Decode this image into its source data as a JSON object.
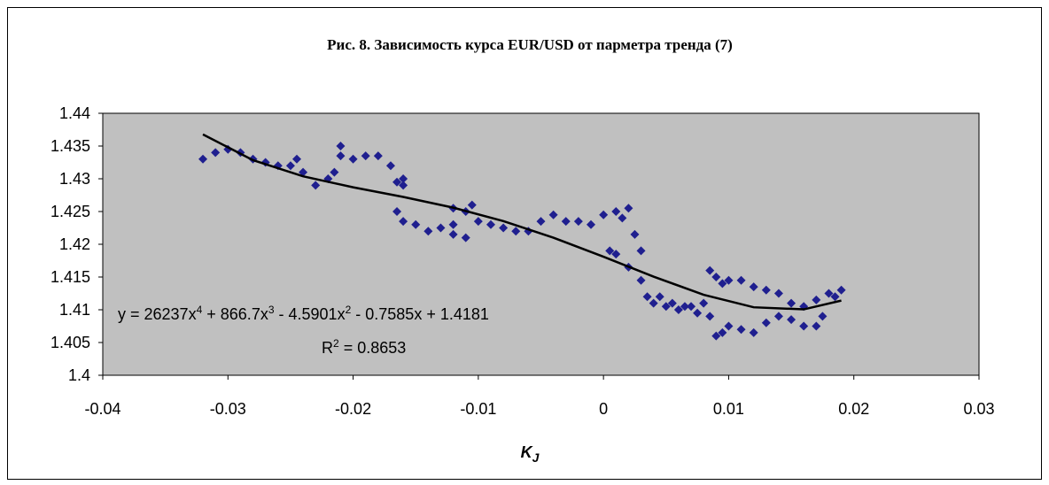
{
  "chart_data": {
    "type": "scatter",
    "title": "Рис. 8. Зависимость курса EUR/USD от парметра тренда (7)",
    "x_label": [
      "K",
      "J"
    ],
    "color": "#1f1f8f",
    "plot_background": "#c0c0c0",
    "xlim": [
      -0.04,
      0.03
    ],
    "xticks": [
      -0.04,
      -0.03,
      -0.02,
      -0.01,
      0,
      0.01,
      0.02,
      0.03
    ],
    "ylim": [
      1.4,
      1.44
    ],
    "yticks": [
      1.4,
      1.405,
      1.41,
      1.415,
      1.42,
      1.425,
      1.43,
      1.435,
      1.44
    ],
    "x": [
      -0.032,
      -0.031,
      -0.03,
      -0.029,
      -0.028,
      -0.027,
      -0.026,
      -0.025,
      -0.0245,
      -0.024,
      -0.023,
      -0.022,
      -0.0215,
      -0.021,
      -0.021,
      -0.02,
      -0.019,
      -0.018,
      -0.017,
      -0.016,
      -0.0165,
      -0.016,
      -0.0165,
      -0.016,
      -0.015,
      -0.014,
      -0.013,
      -0.012,
      -0.012,
      -0.011,
      -0.0105,
      -0.011,
      -0.012,
      -0.01,
      -0.009,
      -0.008,
      -0.007,
      -0.006,
      -0.005,
      -0.004,
      -0.003,
      -0.002,
      -0.001,
      0,
      0.001,
      0.002,
      0.0015,
      0.0025,
      0.003,
      0.0005,
      0.001,
      0.002,
      0.003,
      0.0035,
      0.004,
      0.005,
      0.006,
      0.007,
      0.008,
      0.0085,
      0.009,
      0.0095,
      0.01,
      0.011,
      0.012,
      0.013,
      0.014,
      0.015,
      0.016,
      0.017,
      0.018,
      0.019,
      0.0185,
      0.009,
      0.0095,
      0.01,
      0.011,
      0.012,
      0.013,
      0.014,
      0.015,
      0.016,
      0.017,
      0.0175,
      0.0045,
      0.0055,
      0.0065,
      0.0075,
      0.0085
    ],
    "y": [
      1.433,
      1.434,
      1.4345,
      1.434,
      1.433,
      1.4325,
      1.432,
      1.432,
      1.433,
      1.431,
      1.429,
      1.43,
      1.431,
      1.435,
      1.4335,
      1.433,
      1.4335,
      1.4335,
      1.432,
      1.43,
      1.4295,
      1.429,
      1.425,
      1.4235,
      1.423,
      1.422,
      1.4225,
      1.423,
      1.4255,
      1.425,
      1.426,
      1.421,
      1.4215,
      1.4235,
      1.423,
      1.4225,
      1.422,
      1.422,
      1.4235,
      1.4245,
      1.4235,
      1.4235,
      1.423,
      1.4245,
      1.425,
      1.4255,
      1.424,
      1.4215,
      1.419,
      1.419,
      1.4185,
      1.4165,
      1.4145,
      1.412,
      1.411,
      1.4105,
      1.41,
      1.4105,
      1.411,
      1.416,
      1.415,
      1.414,
      1.4145,
      1.4145,
      1.4135,
      1.413,
      1.4125,
      1.411,
      1.4105,
      1.4115,
      1.4125,
      1.413,
      1.412,
      1.406,
      1.4065,
      1.4075,
      1.407,
      1.4065,
      1.408,
      1.409,
      1.4085,
      1.4075,
      1.4075,
      1.409,
      1.412,
      1.411,
      1.4105,
      1.4095,
      1.409
    ],
    "trendline": {
      "color": "#000000",
      "x": [
        -0.032,
        -0.028,
        -0.024,
        -0.02,
        -0.016,
        -0.012,
        -0.008,
        -0.004,
        0,
        0.004,
        0.008,
        0.012,
        0.016,
        0.019
      ],
      "y": [
        1.43678,
        1.43284,
        1.43038,
        1.4287,
        1.42723,
        1.42559,
        1.42354,
        1.42101,
        1.4181,
        1.41506,
        1.41229,
        1.41038,
        1.41006,
        1.4114
      ]
    },
    "equation": [
      "y = 26237x",
      "4",
      " + 866.7x",
      "3",
      " - 4.5901x",
      "2",
      " - 0.7585x + 1.4181"
    ],
    "r_squared": [
      "R",
      "2",
      " = 0.8653"
    ]
  }
}
